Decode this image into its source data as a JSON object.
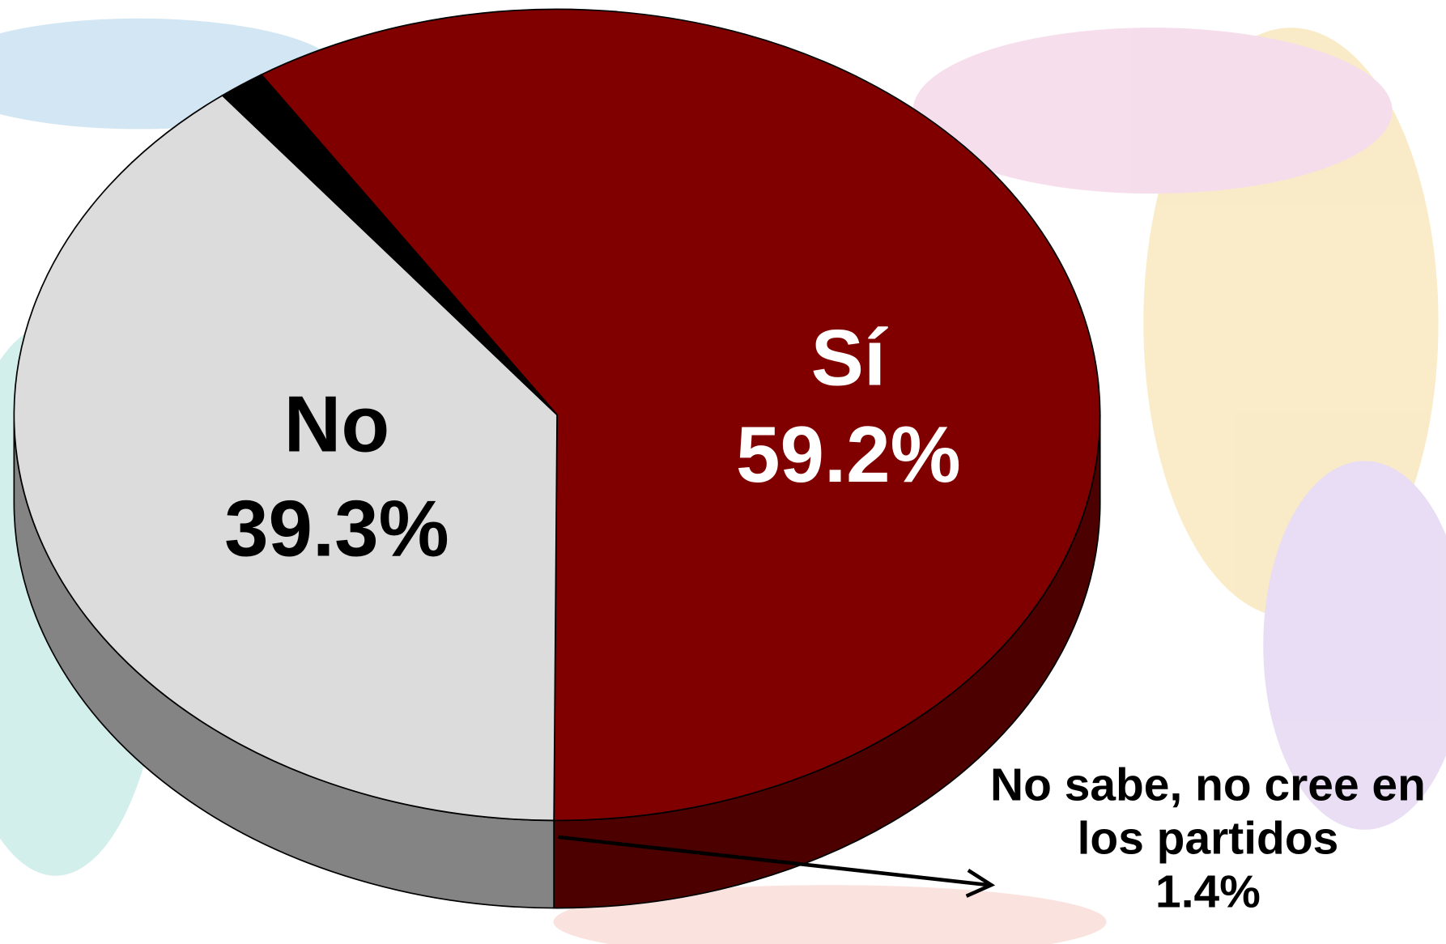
{
  "chart_data": {
    "type": "pie",
    "categories": [
      "Sí",
      "No",
      "No sabe, no cree en los partidos"
    ],
    "values": [
      59.2,
      39.3,
      1.4
    ],
    "value_labels": [
      "59.2%",
      "39.3%",
      "1.4%"
    ],
    "colors": [
      "#800000",
      "#dcdcdc",
      "#000000"
    ]
  }
}
